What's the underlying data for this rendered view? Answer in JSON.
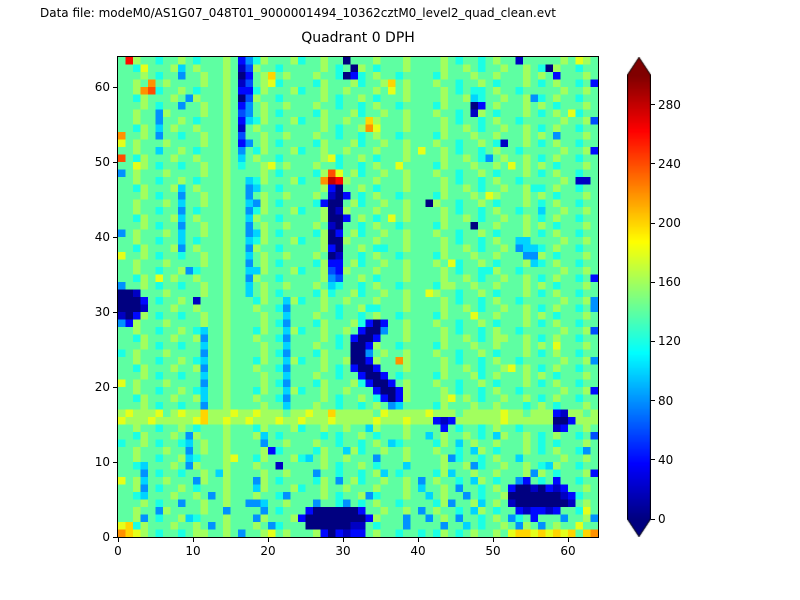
{
  "header": {
    "datafile_label": "Data file: modeM0/AS1G07_048T01_9000001494_10362cztM0_level2_quad_clean.evt"
  },
  "chart_data": {
    "type": "heatmap",
    "title": "Quadrant 0 DPH",
    "xlabel": "",
    "ylabel": "",
    "xlim": [
      0,
      64
    ],
    "ylim": [
      0,
      64
    ],
    "x_ticks": [
      0,
      10,
      20,
      30,
      40,
      50,
      60
    ],
    "y_ticks": [
      0,
      10,
      20,
      30,
      40,
      50,
      60
    ],
    "colormap": "jet",
    "colorbar": {
      "ticks": [
        0,
        40,
        80,
        120,
        160,
        200,
        240,
        280
      ],
      "vmin": 0,
      "vmax": 300,
      "extend": "both"
    },
    "grid_encoding": {
      "description": "64 rows (top row = y=63) of 64 hex digits; counts value = digit * value_per_unit",
      "value_per_unit": 20,
      "rows_order": "top_to_bottom"
    },
    "grid_rows": [
      "7d87767787677787246877786778770777877787777876776787717777787987",
      "7769777857877787138776777778767087677787777877876778778760877677",
      "77787677477877870278a7877787760267877677776877787787778787277787",
      "7787b7877778778713789677776877786778a787778776778767778767877672",
      "778bc67787677787226877786778778777879787777876766787767777787787",
      "7768777874877787038776777778767787677787777877856778778467877677",
      "7778767747787787247877877787767767877677776877702787778787677787",
      "7787748777787787347876777768777867787787778776718767778767879677",
      "778774778767778725687778677877877a877787777876776787767777787783",
      "776875787787778717877677777876778b977787777877876778778767877677",
      "b778747767787787377877877787767767877677776877787787778787477787",
      "9787778777787787247876777768777867787787778776778761778767877677",
      "7787757787677787476877786778778777877787977876776787767777787782",
      "c768777877877787578776777778967787677787777877876478778767877677",
      "7798767767787787677897877787767767877977776877787787978787677787",
      "47877787777877877778767777 68c97867787787778776778767778767877677",
      "778776778767778775687778677bed8777877787777876776787767777787117",
      "7768777857877787745776777778207787677787777877876778778667877677",
      "7778767747787787747877877787102767877677776877787987778787677787",
      "7787778757787787754876777762007867787787708776778767778767877677",
      "7787767747677787746877786778018777877787777876776787767757787787",
      "7768777857877787758776777778002787679787777877876778778767877677",
      "7778767747787787747877877787107767877677776877707787778787677787",
      "4787778757787787745876777768027867787787778776778767778767877677",
      "7787767757677787756877786778008777877787777876776787755777787787",
      "7768777847877787748776777778207787667787777877876778745567877677",
      "9778767767787787757877877787017767877677776877787787774487677787",
      "7787778777787787747876777768227867787787778796778767778567877677",
      "7787767784677787755877786778328777877787777876776687767777787787",
      "7768797877877787748776777778437787677787777877876778778767877672",
      "4778767767787787757877877787567767877677776887787787778787677787",
      "0017778777787787757876777768677867787787798776778767778767877677",
      "0002767787177787776877586778778777877787777876776787767777787784",
      "0001777877877787778776477778767786677787777877876778778767877674",
      "1028767767787787777877577787767767877677776877797787778787677787",
      "4287778777787787777876477768777862027787778776778767778767877677",
      "7787767787657787776877586778778720047787777876776787767777787783",
      "7768777877847787778776477778767200277787777877876788778767877677",
      "7778767767757787777877577787767002877677776877787787778787977787",
      "6787778777747787777876477768777004787787778776778767778767877677",
      "778776778765778777687758677877800287 7b8777787677678776777778 7784",
      "7768777877847787778776477778767200277787777877876778978767877677",
      "7778767767757787777877577787767720027677776877786787778787677787",
      "9787778777747787777876477768777862002787778776778767778767877677",
      "7787767787657787776877586778778777200287777876776787767777787782",
      "7768777877857787778776477778767787620287777897876778778767877677",
      "7778767767747787777877577787767767874577776877787787776787677787",
      "89888978988a88898898887889 88a88888798888898887888889887888218878",
      "98889888889a88988988898898889888889888988821288888898888 88002888",
      "7787767787677787776877786778778775877787777276776787767777127787",
      "7768777874877787778576777776767787677787757877876758778767877673",
      "6778767765787787777477877787767767875677776875787787778767677787",
      "7787778774787787777826777768775867787787778776758767778767877647",
      "7787767785677789776877786578778777477787777846776787757777787787",
      "7765777874877787778771777778767787677757777877846778778765877677",
      "7774767767787587777877877747767767857677776857787787778487677782",
      "9785778777487787774876777768747867787787478776758767742767277677",
      "7784767787677787775877786778778777877787577874776787200102127787",
      "7765777877874787778776477778767784677787757877476778000000012677",
      "7778767747787787744577877747764767877677776847785787100000001787",
      "7787748777787747777476777200000027787787478776758767721221277697",
      "7784767785677787774877782000000002877747747874776787467277747784",
      "9a68777877874787778746777000000117677747777477576778748747877977",
      "ba98767767887787477897877782021227877677676876787787 9aa9a9a9a7ab"
    ]
  }
}
